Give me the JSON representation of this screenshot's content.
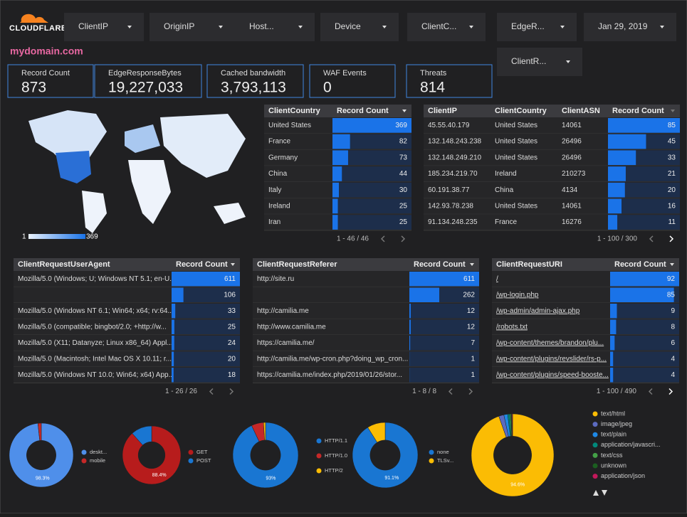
{
  "header": {
    "logo": "CLOUDFLARE",
    "title": "mydomain.com"
  },
  "filters": [
    "ClientIP",
    "OriginIP",
    "Host...",
    "Device",
    "ClientC...",
    "EdgeR...",
    "Jan 29, 2019",
    "ClientR..."
  ],
  "scorecards": [
    {
      "label": "Record Count",
      "value": "873"
    },
    {
      "label": "EdgeResponseBytes",
      "value": "19,227,033"
    },
    {
      "label": "Cached bandwidth",
      "value": "3,793,113"
    },
    {
      "label": "WAF Events",
      "value": "0"
    },
    {
      "label": "Threats",
      "value": "814"
    }
  ],
  "map": {
    "legend_min": 1,
    "legend_max": 369
  },
  "tables": [
    {
      "columns": [
        "ClientCountry",
        "Record Count"
      ],
      "rows": [
        [
          "United States",
          369
        ],
        [
          "France",
          82
        ],
        [
          "Germany",
          73
        ],
        [
          "China",
          44
        ],
        [
          "Italy",
          30
        ],
        [
          "Ireland",
          25
        ],
        [
          "Iran",
          25
        ]
      ],
      "pagination": "1 - 46 / 46"
    },
    {
      "columns": [
        "ClientIP",
        "ClientCountry",
        "ClientASN",
        "Record Count"
      ],
      "rows": [
        [
          "45.55.40.179",
          "United States",
          "14061",
          85
        ],
        [
          "132.148.243.238",
          "United States",
          "26496",
          45
        ],
        [
          "132.148.249.210",
          "United States",
          "26496",
          33
        ],
        [
          "185.234.219.70",
          "Ireland",
          "210273",
          21
        ],
        [
          "60.191.38.77",
          "China",
          "4134",
          20
        ],
        [
          "142.93.78.238",
          "United States",
          "14061",
          16
        ],
        [
          "91.134.248.235",
          "France",
          "16276",
          11
        ]
      ],
      "pagination": "1 - 100 / 300"
    },
    {
      "columns": [
        "ClientRequestUserAgent",
        "Record Count"
      ],
      "rows": [
        [
          "Mozilla/5.0 (Windows; U; Windows NT 5.1; en-U...",
          611
        ],
        [
          null,
          106
        ],
        [
          "Mozilla/5.0 (Windows NT 6.1; Win64; x64; rv:64....",
          33
        ],
        [
          "Mozilla/5.0 (compatible; bingbot/2.0; +http://w...",
          25
        ],
        [
          "Mozilla/5.0 (X11; Datanyze; Linux x86_64) Appl...",
          24
        ],
        [
          "Mozilla/5.0 (Macintosh; Intel Mac OS X 10.11; r...",
          20
        ],
        [
          "Mozilla/5.0 (Windows NT 10.0; Win64; x64) App...",
          18
        ]
      ],
      "pagination": "1 - 26 / 26"
    },
    {
      "columns": [
        "ClientRequestReferer",
        "Record Count"
      ],
      "rows": [
        [
          "http://site.ru",
          611
        ],
        [
          null,
          262
        ],
        [
          "http://camilia.me",
          12
        ],
        [
          "http://www.camilia.me",
          12
        ],
        [
          "https://camilia.me/",
          7
        ],
        [
          "http://camilia.me/wp-cron.php?doing_wp_cron...",
          1
        ],
        [
          "https://camilia.me/index.php/2019/01/26/stor...",
          1
        ]
      ],
      "pagination": "1 - 8 / 8"
    },
    {
      "columns": [
        "ClientRequestURI",
        "Record Count"
      ],
      "rows": [
        [
          "/",
          92
        ],
        [
          "/wp-login.php",
          85
        ],
        [
          "/wp-admin/admin-ajax.php",
          9
        ],
        [
          "/robots.txt",
          8
        ],
        [
          "/wp-content/themes/brandon/plu...",
          6
        ],
        [
          "/wp-content/plugins/revslider/rs-p...",
          4
        ],
        [
          "/wp-content/plugins/speed-booste...",
          4
        ]
      ],
      "pagination": "1 - 100 / 490"
    }
  ],
  "chart_data": [
    {
      "type": "donut",
      "categories": [
        "deskt...",
        "mobile"
      ],
      "values": [
        98.3,
        1.7
      ],
      "value_labels": [
        "98.3%",
        null
      ],
      "colors": [
        "#4f8fea",
        "#c62828"
      ]
    },
    {
      "type": "donut",
      "categories": [
        "GET",
        "POST"
      ],
      "values": [
        88.4,
        11.6
      ],
      "value_labels": [
        "88.4%",
        null
      ],
      "colors": [
        "#b71c1c",
        "#1976d2"
      ]
    },
    {
      "type": "donut",
      "categories": [
        "HTTP/1.1",
        "HTTP/1.0",
        "HTTP/2"
      ],
      "values": [
        93,
        6,
        1
      ],
      "value_labels": [
        "93%",
        null,
        null
      ],
      "colors": [
        "#1976d2",
        "#c62828",
        "#fbbc04"
      ]
    },
    {
      "type": "donut",
      "categories": [
        "none",
        "TLSv..."
      ],
      "values": [
        91.1,
        8.9
      ],
      "value_labels": [
        "91.1%",
        null
      ],
      "colors": [
        "#1976d2",
        "#fbbc04"
      ]
    },
    {
      "type": "donut",
      "categories": [
        "text/html",
        "image/jpeg",
        "text/plain",
        "application/javascri...",
        "text/css",
        "unknown",
        "application/json"
      ],
      "values": [
        94.6,
        2,
        1.5,
        0.8,
        0.5,
        0.3,
        0.3
      ],
      "value_labels": [
        "94.6%",
        null,
        null,
        null,
        null,
        null,
        null
      ],
      "colors": [
        "#fbbc04",
        "#5c6bc0",
        "#1e88e5",
        "#00897b",
        "#43a047",
        "#1b5e20",
        "#c2185b"
      ]
    }
  ]
}
